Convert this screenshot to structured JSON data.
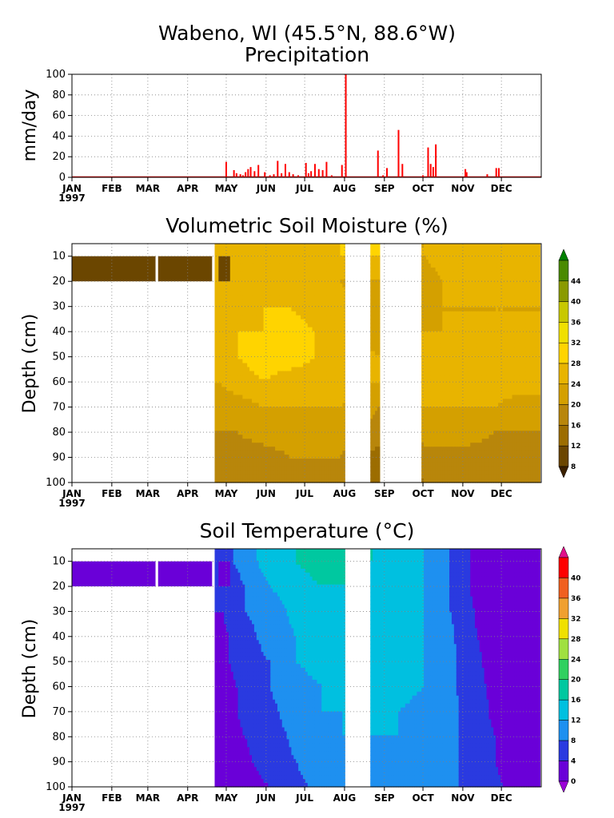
{
  "figure": {
    "title_line1": "Wabeno, WI  (45.5°N, 88.6°W)",
    "title_line2": "Precipitation",
    "year_label": "1997",
    "months": [
      "JAN",
      "FEB",
      "MAR",
      "APR",
      "MAY",
      "JUN",
      "JUL",
      "AUG",
      "SEP",
      "OCT",
      "NOV",
      "DEC"
    ]
  },
  "chart_data": [
    {
      "type": "bar",
      "title": "Precipitation",
      "ylabel": "mm/day",
      "xlabel": "",
      "ylim": [
        0,
        100
      ],
      "yticks": [
        0,
        20,
        40,
        60,
        80,
        100
      ],
      "x_units": "day of year 1997",
      "xlim": [
        1,
        365
      ],
      "grid": true,
      "color": "#ff0000",
      "days": [
        121,
        127,
        129,
        132,
        134,
        136,
        138,
        140,
        143,
        146,
        151,
        155,
        158,
        161,
        164,
        167,
        170,
        173,
        177,
        183,
        185,
        187,
        190,
        193,
        196,
        199,
        203,
        211,
        214,
        239,
        243,
        246,
        255,
        258,
        274,
        278,
        280,
        282,
        284,
        307,
        308,
        324,
        331,
        333
      ],
      "values": [
        15,
        7,
        4,
        3,
        2,
        5,
        8,
        10,
        6,
        12,
        5,
        2,
        3,
        16,
        4,
        13,
        5,
        3,
        2,
        14,
        4,
        6,
        13,
        8,
        7,
        15,
        2,
        12,
        100,
        26,
        2,
        9,
        46,
        13,
        2,
        29,
        13,
        10,
        32,
        8,
        5,
        3,
        9,
        9
      ]
    },
    {
      "type": "heatmap",
      "title": "Volumetric Soil Moisture (%)",
      "ylabel": "Depth (cm)",
      "yticks": [
        10,
        20,
        30,
        40,
        50,
        60,
        70,
        80,
        90,
        100
      ],
      "ylim": [
        5,
        100
      ],
      "colorbar_levels": [
        8,
        12,
        16,
        20,
        24,
        28,
        32,
        36,
        40,
        44
      ],
      "colorbar_colors": [
        "#3b2000",
        "#6b4600",
        "#9c6d00",
        "#b8860b",
        "#d4a000",
        "#e8b400",
        "#ffd400",
        "#f0e000",
        "#c8c800",
        "#8a9a00",
        "#4a8a00",
        "#008000"
      ],
      "missing_periods": [
        [
          213,
          233
        ],
        [
          240,
          272
        ]
      ],
      "missing_note_depth": [
        5,
        20
      ],
      "early_value_shallow": 8,
      "times": [
        1,
        110,
        115,
        130,
        150,
        170,
        190,
        210,
        240,
        260,
        275,
        290,
        310,
        330,
        350,
        365
      ],
      "depths": [
        5,
        10,
        20,
        30,
        40,
        50,
        60,
        70,
        80,
        90,
        100
      ],
      "values": [
        [
          null,
          null,
          28,
          28,
          28,
          28,
          28,
          28,
          null,
          24,
          24,
          28,
          28,
          28,
          28,
          28
        ],
        [
          null,
          null,
          26,
          26,
          28,
          26,
          26,
          28,
          null,
          24,
          24,
          28,
          26,
          28,
          26,
          26
        ],
        [
          null,
          null,
          24,
          24,
          24,
          24,
          24,
          24,
          20,
          20,
          20,
          24,
          24,
          24,
          24,
          24
        ],
        [
          null,
          null,
          24,
          26,
          28,
          28,
          26,
          26,
          20,
          20,
          20,
          24,
          24,
          24,
          24,
          24
        ],
        [
          null,
          null,
          26,
          28,
          28,
          30,
          28,
          26,
          22,
          24,
          24,
          24,
          24,
          24,
          24,
          24
        ],
        [
          null,
          null,
          26,
          28,
          30,
          30,
          28,
          26,
          24,
          26,
          28,
          26,
          26,
          26,
          26,
          26
        ],
        [
          null,
          null,
          24,
          26,
          28,
          26,
          26,
          26,
          24,
          26,
          28,
          26,
          26,
          26,
          26,
          26
        ],
        [
          null,
          null,
          22,
          22,
          24,
          24,
          24,
          24,
          20,
          22,
          24,
          24,
          24,
          24,
          22,
          22
        ],
        [
          null,
          null,
          20,
          20,
          22,
          22,
          22,
          22,
          18,
          20,
          22,
          22,
          22,
          20,
          20,
          20
        ],
        [
          null,
          null,
          16,
          18,
          18,
          20,
          20,
          20,
          14,
          16,
          18,
          18,
          18,
          18,
          18,
          18
        ],
        [
          null,
          null,
          16,
          16,
          16,
          18,
          18,
          18,
          12,
          14,
          16,
          16,
          16,
          16,
          16,
          16
        ]
      ]
    },
    {
      "type": "heatmap",
      "title": "Soil Temperature (°C)",
      "ylabel": "Depth (cm)",
      "yticks": [
        10,
        20,
        30,
        40,
        50,
        60,
        70,
        80,
        90,
        100
      ],
      "ylim": [
        5,
        100
      ],
      "colorbar_levels": [
        0,
        4,
        8,
        12,
        16,
        20,
        24,
        28,
        32,
        36,
        40
      ],
      "colorbar_colors": [
        "#9b00d8",
        "#6a00d8",
        "#2a3ae0",
        "#1e90f0",
        "#00c0e0",
        "#00c8a0",
        "#30d060",
        "#a0e040",
        "#f0e000",
        "#f0a030",
        "#f06020",
        "#ff0000",
        "#e0108a"
      ],
      "missing_periods": [
        [
          213,
          233
        ]
      ],
      "early_value_shallow": 0,
      "times": [
        1,
        110,
        118,
        135,
        155,
        175,
        195,
        212,
        235,
        255,
        275,
        295,
        310,
        330,
        350,
        365
      ],
      "depths": [
        5,
        10,
        20,
        30,
        40,
        50,
        60,
        70,
        80,
        90,
        100
      ],
      "values": [
        [
          null,
          null,
          6,
          10,
          14,
          16,
          18,
          18,
          16,
          14,
          12,
          8,
          4,
          0,
          0,
          0
        ],
        [
          null,
          null,
          6,
          10,
          14,
          16,
          18,
          18,
          16,
          14,
          12,
          8,
          4,
          0,
          0,
          0
        ],
        [
          null,
          null,
          4,
          8,
          12,
          14,
          16,
          16,
          14,
          14,
          12,
          8,
          4,
          0,
          0,
          0
        ],
        [
          null,
          null,
          4,
          8,
          10,
          13,
          14,
          16,
          14,
          14,
          12,
          8,
          5,
          0,
          0,
          0
        ],
        [
          null,
          null,
          3,
          6,
          10,
          12,
          14,
          14,
          14,
          14,
          12,
          9,
          5,
          2,
          0,
          0
        ],
        [
          null,
          null,
          3,
          6,
          8,
          12,
          13,
          14,
          14,
          14,
          12,
          9,
          6,
          2,
          0,
          0
        ],
        [
          null,
          null,
          2,
          5,
          8,
          11,
          12,
          14,
          14,
          13,
          12,
          9,
          6,
          3,
          0,
          0
        ],
        [
          null,
          null,
          2,
          5,
          7,
          10,
          12,
          12,
          13,
          12,
          11,
          9,
          7,
          3,
          0,
          0
        ],
        [
          null,
          null,
          1,
          4,
          6,
          9,
          11,
          12,
          12,
          12,
          11,
          9,
          7,
          4,
          1,
          0
        ],
        [
          null,
          null,
          0,
          3,
          6,
          8,
          10,
          11,
          11,
          11,
          10,
          9,
          7,
          4,
          1,
          0
        ],
        [
          null,
          null,
          0,
          2,
          4,
          7,
          9,
          10,
          10,
          10,
          10,
          9,
          7,
          5,
          2,
          0
        ]
      ]
    }
  ]
}
